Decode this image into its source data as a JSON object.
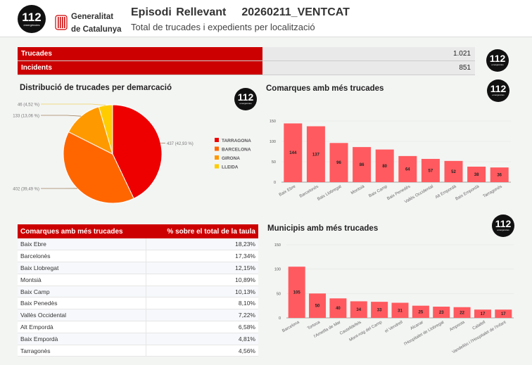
{
  "header": {
    "logo_text": "112",
    "logo_sub": "emergències",
    "gov_line1": "Generalitat",
    "gov_line2": "de Catalunya",
    "title": "Episodi Rellevant",
    "code": "20260211_VENTCAT",
    "subtitle": "Total de trucades i expedients per localització"
  },
  "summary": [
    {
      "label": "Trucades",
      "value": "1.021"
    },
    {
      "label": "Incidents",
      "value": "851"
    }
  ],
  "colors": {
    "accent": "#cc0000",
    "bar": "#ff5a5f",
    "tarragona": "#ee0000",
    "barcelona": "#ff6600",
    "girona": "#ff9900",
    "lleida": "#ffcc00"
  },
  "chart_data": [
    {
      "type": "pie",
      "title": "Distribució de trucades per demarcació",
      "legend": "right",
      "slices": [
        {
          "name": "TARRAGONA",
          "value": 437,
          "label": "437 (42,93 %)"
        },
        {
          "name": "BARCELONA",
          "value": 402,
          "label": "402 (39,49 %)"
        },
        {
          "name": "GIRONA",
          "value": 133,
          "label": "133 (13,06 %)"
        },
        {
          "name": "LLEIDA",
          "value": 46,
          "label": "46 (4,52 %)"
        }
      ]
    },
    {
      "type": "bar",
      "title": "Comarques amb més trucades",
      "ylim": [
        0,
        150
      ],
      "yticks": [
        0,
        50,
        100,
        150
      ],
      "grid": true,
      "categories": [
        "Baix Ebre",
        "Barcelonès",
        "Baix Llobregat",
        "Montsià",
        "Baix Camp",
        "Baix Penedès",
        "Vallès Occidental",
        "Alt Empordà",
        "Baix Empordà",
        "Tarragonès"
      ],
      "values": [
        144,
        137,
        96,
        86,
        80,
        64,
        57,
        52,
        38,
        36
      ]
    },
    {
      "type": "bar",
      "title": "Municipis amb més trucades",
      "ylim": [
        0,
        150
      ],
      "yticks": [
        0,
        50,
        100,
        150
      ],
      "grid": true,
      "categories": [
        "Barcelona",
        "Tortosa",
        "l'Ametlla de Mar",
        "Castelldefels",
        "Mont-roig del Camp",
        "el Vendrell",
        "Alcanar",
        "l'Hospitalet de Llobregat",
        "Amposta",
        "Calafell",
        "Vandellòs i l'Hospitalet de l'Infant"
      ],
      "values": [
        105,
        50,
        40,
        34,
        33,
        31,
        25,
        23,
        22,
        17,
        17
      ]
    }
  ],
  "table": {
    "headers": [
      "Comarques amb més trucades",
      "% sobre el total de la taula"
    ],
    "rows": [
      [
        "Baix Ebre",
        "18,23%"
      ],
      [
        "Barcelonès",
        "17,34%"
      ],
      [
        "Baix Llobregat",
        "12,15%"
      ],
      [
        "Montsià",
        "10,89%"
      ],
      [
        "Baix Camp",
        "10,13%"
      ],
      [
        "Baix Penedès",
        "8,10%"
      ],
      [
        "Vallès Occidental",
        "7,22%"
      ],
      [
        "Alt Empordà",
        "6,58%"
      ],
      [
        "Baix Empordà",
        "4,81%"
      ],
      [
        "Tarragonès",
        "4,56%"
      ]
    ]
  }
}
